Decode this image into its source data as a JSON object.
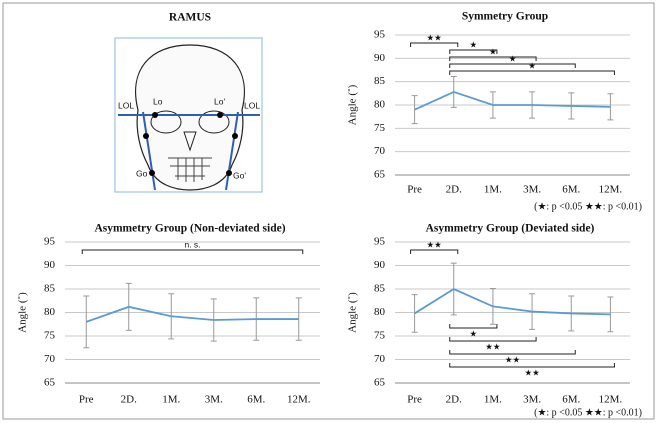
{
  "diagram": {
    "title": "RAMUS",
    "labels": [
      "LOL",
      "LOL",
      "Lo",
      "Lo'",
      "Go",
      "Go'"
    ]
  },
  "chart_data": [
    {
      "type": "line",
      "title": "Symmetry Group",
      "y_label": "Angle (˚)",
      "categories": [
        "Pre",
        "2D.",
        "1M.",
        "3M.",
        "6M.",
        "12M."
      ],
      "values": [
        79,
        82.8,
        80,
        80,
        79.8,
        79.6
      ],
      "errors": [
        3,
        3.3,
        2.8,
        2.8,
        2.8,
        2.8
      ],
      "color": "#5b9bd5",
      "ylim": [
        65,
        95
      ],
      "yticks": [
        65,
        70,
        75,
        80,
        85,
        90,
        95
      ],
      "grid": true,
      "brackets": [
        {
          "from": 0,
          "to": 1,
          "label": "★★",
          "side": "top"
        },
        {
          "from": 1,
          "to": 2,
          "label": "★",
          "side": "top"
        },
        {
          "from": 1,
          "to": 3,
          "label": "★",
          "side": "top"
        },
        {
          "from": 1,
          "to": 4,
          "label": "★",
          "side": "top"
        },
        {
          "from": 1,
          "to": 5,
          "label": "★",
          "side": "top"
        }
      ],
      "footnote": "(★: p <0.05  ★★: p <0.01)"
    },
    {
      "type": "line",
      "title": "Asymmetry Group (Non-deviated side)",
      "y_label": "Angle (˚)",
      "categories": [
        "Pre",
        "2D.",
        "1M.",
        "3M.",
        "6M.",
        "12M."
      ],
      "values": [
        78,
        81.2,
        79.2,
        78.4,
        78.6,
        78.6
      ],
      "errors": [
        5.5,
        5,
        4.8,
        4.5,
        4.5,
        4.5
      ],
      "color": "#5b9bd5",
      "ylim": [
        65,
        95
      ],
      "yticks": [
        65,
        70,
        75,
        80,
        85,
        90,
        95
      ],
      "grid": true,
      "brackets": [
        {
          "from": 0,
          "to": 5,
          "label": "n. s.",
          "side": "top"
        }
      ]
    },
    {
      "type": "line",
      "title": "Asymmetry Group (Deviated side)",
      "y_label": "Angle (˚)",
      "categories": [
        "Pre",
        "2D.",
        "1M.",
        "3M.",
        "6M.",
        "12M."
      ],
      "values": [
        79.8,
        85,
        81.3,
        80.2,
        79.8,
        79.6
      ],
      "errors": [
        4,
        5.5,
        3.8,
        3.8,
        3.7,
        3.7
      ],
      "color": "#5b9bd5",
      "ylim": [
        65,
        95
      ],
      "yticks": [
        65,
        70,
        75,
        80,
        85,
        90,
        95
      ],
      "grid": true,
      "brackets": [
        {
          "from": 0,
          "to": 1,
          "label": "★★",
          "side": "top"
        },
        {
          "from": 1,
          "to": 2,
          "label": "★",
          "side": "bottom"
        },
        {
          "from": 1,
          "to": 3,
          "label": "★★",
          "side": "bottom"
        },
        {
          "from": 1,
          "to": 4,
          "label": "★★",
          "side": "bottom"
        },
        {
          "from": 1,
          "to": 5,
          "label": "★★",
          "side": "bottom"
        }
      ],
      "footnote": "(★: p <0.05  ★★: p <0.01)"
    }
  ]
}
